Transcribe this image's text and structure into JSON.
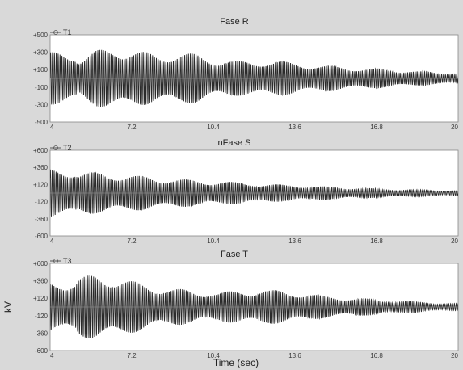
{
  "colors": {
    "background": "#d9d9d9",
    "plot_background": "#ffffff",
    "trace": "#2a2a2a",
    "axis_text": "#3a3a3a"
  },
  "chart_data": [
    {
      "type": "line",
      "title": "Fase R",
      "series": [
        {
          "name": "T1"
        }
      ],
      "xlim": [
        4,
        20
      ],
      "ylim": [
        -500,
        500
      ],
      "xticks": [
        "4",
        "7.2",
        "10.4",
        "13.6",
        "16.8",
        "20"
      ],
      "yticks": [
        "+500",
        "+300",
        "+100",
        "-100",
        "-300",
        "-500"
      ],
      "envelope_kV": [
        [
          4.0,
          300
        ],
        [
          5.0,
          300
        ],
        [
          5.1,
          240
        ],
        [
          5.8,
          320
        ],
        [
          6.6,
          360
        ],
        [
          7.4,
          320
        ],
        [
          8.2,
          280
        ],
        [
          9.0,
          300
        ],
        [
          9.8,
          280
        ],
        [
          10.6,
          220
        ],
        [
          11.4,
          200
        ],
        [
          12.2,
          210
        ],
        [
          13.0,
          200
        ],
        [
          13.8,
          180
        ],
        [
          14.6,
          150
        ],
        [
          15.4,
          140
        ],
        [
          16.2,
          120
        ],
        [
          17.0,
          110
        ],
        [
          17.8,
          100
        ],
        [
          18.6,
          80
        ],
        [
          19.4,
          70
        ],
        [
          20.0,
          60
        ]
      ]
    },
    {
      "type": "line",
      "title": "nFase S",
      "series": [
        {
          "name": "T2"
        }
      ],
      "xlim": [
        4,
        20
      ],
      "ylim": [
        -600,
        600
      ],
      "xticks": [
        "4",
        "7.2",
        "10.4",
        "13.6",
        "16.8",
        "20"
      ],
      "yticks": [
        "+600",
        "+360",
        "+120",
        "-120",
        "-360",
        "-600"
      ],
      "envelope_kV": [
        [
          4.0,
          340
        ],
        [
          5.0,
          340
        ],
        [
          5.1,
          300
        ],
        [
          6.0,
          290
        ],
        [
          7.0,
          260
        ],
        [
          8.0,
          230
        ],
        [
          9.0,
          200
        ],
        [
          10.0,
          180
        ],
        [
          11.0,
          160
        ],
        [
          12.0,
          140
        ],
        [
          13.0,
          120
        ],
        [
          14.0,
          105
        ],
        [
          15.0,
          90
        ],
        [
          16.0,
          75
        ],
        [
          17.0,
          62
        ],
        [
          18.0,
          52
        ],
        [
          19.0,
          44
        ],
        [
          20.0,
          38
        ]
      ]
    },
    {
      "type": "line",
      "title": "Fase T",
      "series": [
        {
          "name": "T3"
        }
      ],
      "xlim": [
        4,
        20
      ],
      "ylim": [
        -600,
        600
      ],
      "xticks": [
        "4",
        "7.2",
        "10.4",
        "13.6",
        "16.8",
        "20"
      ],
      "yticks": [
        "+600",
        "+360",
        "+120",
        "-120",
        "-360",
        "-600"
      ],
      "ylabel": "kV",
      "xlabel": "Time (sec)",
      "envelope_kV": [
        [
          4.0,
          360
        ],
        [
          5.0,
          360
        ],
        [
          5.1,
          420
        ],
        [
          5.8,
          440
        ],
        [
          6.6,
          420
        ],
        [
          7.4,
          340
        ],
        [
          8.2,
          280
        ],
        [
          9.0,
          250
        ],
        [
          9.8,
          220
        ],
        [
          10.6,
          200
        ],
        [
          11.4,
          230
        ],
        [
          12.2,
          240
        ],
        [
          13.0,
          230
        ],
        [
          13.8,
          200
        ],
        [
          14.6,
          160
        ],
        [
          15.4,
          140
        ],
        [
          16.2,
          120
        ],
        [
          17.0,
          100
        ],
        [
          17.8,
          85
        ],
        [
          18.6,
          70
        ],
        [
          19.4,
          55
        ],
        [
          20.0,
          50
        ]
      ]
    }
  ]
}
